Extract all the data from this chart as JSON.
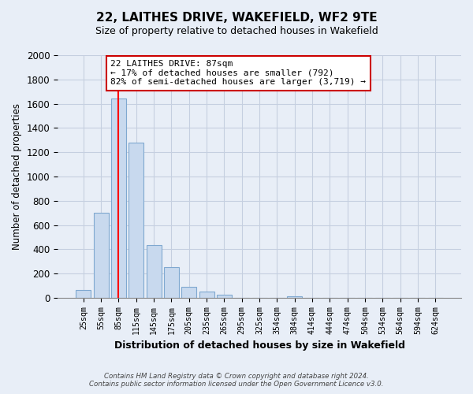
{
  "title": "22, LAITHES DRIVE, WAKEFIELD, WF2 9TE",
  "subtitle": "Size of property relative to detached houses in Wakefield",
  "xlabel": "Distribution of detached houses by size in Wakefield",
  "ylabel": "Number of detached properties",
  "bar_labels": [
    "25sqm",
    "55sqm",
    "85sqm",
    "115sqm",
    "145sqm",
    "175sqm",
    "205sqm",
    "235sqm",
    "265sqm",
    "295sqm",
    "325sqm",
    "354sqm",
    "384sqm",
    "414sqm",
    "444sqm",
    "474sqm",
    "504sqm",
    "534sqm",
    "564sqm",
    "594sqm",
    "624sqm"
  ],
  "bar_values": [
    65,
    700,
    1640,
    1280,
    435,
    252,
    88,
    50,
    28,
    0,
    0,
    0,
    15,
    0,
    0,
    0,
    0,
    0,
    0,
    0,
    0
  ],
  "bar_fill_color": "#c8d9ee",
  "bar_edge_color": "#7fa8d0",
  "vline_color": "red",
  "annotation_line1": "22 LAITHES DRIVE: 87sqm",
  "annotation_line2": "← 17% of detached houses are smaller (792)",
  "annotation_line3": "82% of semi-detached houses are larger (3,719) →",
  "annotation_box_color": "white",
  "annotation_box_edge": "#cc0000",
  "ylim": [
    0,
    2000
  ],
  "yticks": [
    0,
    200,
    400,
    600,
    800,
    1000,
    1200,
    1400,
    1600,
    1800,
    2000
  ],
  "footer_line1": "Contains HM Land Registry data © Crown copyright and database right 2024.",
  "footer_line2": "Contains public sector information licensed under the Open Government Licence v3.0.",
  "background_color": "#e8eef7",
  "plot_bg_color": "#e8eef7",
  "grid_color": "#c5cfe0"
}
